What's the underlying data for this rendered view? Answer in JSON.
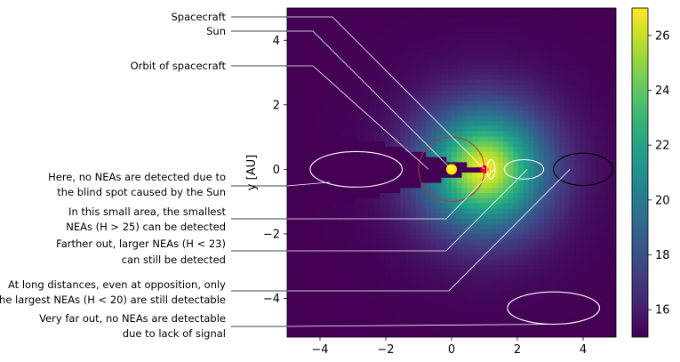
{
  "chart_data": {
    "type": "heatmap",
    "xlabel": "",
    "ylabel": "y [AU]",
    "xlim": [
      -5,
      5
    ],
    "ylim": [
      -5.2,
      5.0
    ],
    "xticks": [
      -4,
      -2,
      0,
      2,
      4
    ],
    "yticks": [
      -4,
      -2,
      0,
      2,
      4
    ],
    "xtick_labels": [
      "−4",
      "−2",
      "0",
      "2",
      "4"
    ],
    "ytick_labels": [
      "−4",
      "−2",
      "0",
      "2",
      "4"
    ],
    "colorbar": {
      "colormap": "viridis",
      "range": [
        15,
        27
      ],
      "ticks": [
        16,
        18,
        20,
        22,
        24,
        26
      ],
      "tick_labels": [
        "16",
        "18",
        "20",
        "22",
        "24",
        "26"
      ]
    },
    "markers": {
      "sun": {
        "x": 0.0,
        "y": 0.0,
        "color": "#ffee00"
      },
      "spacecraft": {
        "x": 1.0,
        "y": 0.0,
        "color": "#e8001c"
      },
      "orbit_radius": 1.0
    },
    "highlight_ellipses": [
      {
        "cx": -2.9,
        "cy": 0.0,
        "rx": 1.4,
        "ry": 0.55,
        "color": "#ffffff"
      },
      {
        "cx": 1.2,
        "cy": 0.0,
        "rx": 0.12,
        "ry": 0.3,
        "color": "#ffffff"
      },
      {
        "cx": 2.2,
        "cy": 0.0,
        "rx": 0.6,
        "ry": 0.3,
        "color": "#ffffff"
      },
      {
        "cx": 4.0,
        "cy": 0.0,
        "rx": 0.9,
        "ry": 0.5,
        "color": "#000000"
      },
      {
        "cx": 3.1,
        "cy": -4.3,
        "rx": 1.4,
        "ry": 0.5,
        "color": "#ffffff"
      }
    ],
    "annotations": [
      {
        "id": "spacecraft",
        "text": [
          "Spacecraft"
        ],
        "target": {
          "x": 1.0,
          "y": 0.0
        }
      },
      {
        "id": "sun",
        "text": [
          "Sun"
        ],
        "target": {
          "x": 0.0,
          "y": 0.0
        }
      },
      {
        "id": "orbit",
        "text": [
          "Orbit of spacecraft"
        ],
        "target": {
          "x": -0.7,
          "y": 0.0
        }
      },
      {
        "id": "blind-spot",
        "text": [
          "Here, no NEAs are detected due to",
          "the blind spot caused by the Sun"
        ],
        "target": {
          "x": -3.7,
          "y": -0.4
        }
      },
      {
        "id": "smallest",
        "text": [
          "In this small area, the smallest",
          "NEAs (H > 25) can be detected"
        ],
        "target": {
          "x": 1.3,
          "y": 0.0
        }
      },
      {
        "id": "larger",
        "text": [
          "Farther out, larger NEAs (H < 23)",
          "can still be detected"
        ],
        "target": {
          "x": 2.3,
          "y": 0.0
        }
      },
      {
        "id": "largest",
        "text": [
          "At long distances, even at opposition, only",
          "the largest NEAs (H < 20) are still detectable"
        ],
        "target": {
          "x": 3.6,
          "y": 0.0
        }
      },
      {
        "id": "very-far",
        "text": [
          "Very far out, no NEAs are detectable",
          "due to lack of signal"
        ],
        "target": {
          "x": 3.1,
          "y": -4.8
        }
      }
    ]
  }
}
